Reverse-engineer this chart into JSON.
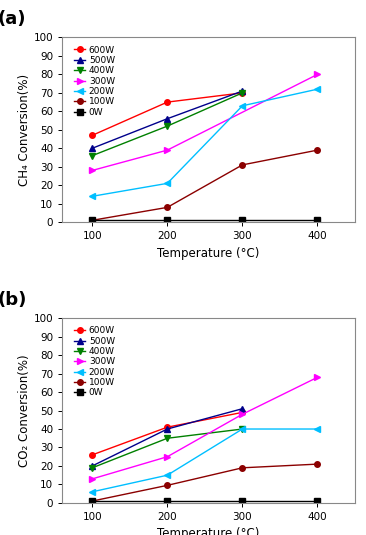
{
  "temperatures": [
    100,
    200,
    300,
    400
  ],
  "panel_a": {
    "title": "(a)",
    "ylabel": "CH₄ Conversion(%)",
    "xlabel": "Temperature (°C)",
    "ylim": [
      0,
      100
    ],
    "series": [
      {
        "label": "600W",
        "color": "#FF0000",
        "marker": "o",
        "values": [
          47,
          65,
          70,
          null
        ]
      },
      {
        "label": "500W",
        "color": "#00008B",
        "marker": "^",
        "values": [
          40,
          56,
          71,
          null
        ]
      },
      {
        "label": "400W",
        "color": "#008000",
        "marker": "v",
        "values": [
          36,
          52,
          70,
          null
        ]
      },
      {
        "label": "300W",
        "color": "#FF00FF",
        "marker": ">",
        "values": [
          28,
          39,
          null,
          80
        ]
      },
      {
        "label": "200W",
        "color": "#00BFFF",
        "marker": "<",
        "values": [
          14,
          21,
          63,
          72
        ]
      },
      {
        "label": "100W",
        "color": "#8B0000",
        "marker": "o",
        "values": [
          1,
          8,
          31,
          39
        ]
      },
      {
        "label": "0W",
        "color": "#000000",
        "marker": "s",
        "values": [
          1,
          1,
          1,
          1
        ]
      }
    ]
  },
  "panel_b": {
    "title": "(b)",
    "ylabel": "CO₂ Conversion(%)",
    "xlabel": "Temperature (°C)",
    "ylim": [
      0,
      100
    ],
    "series": [
      {
        "label": "600W",
        "color": "#FF0000",
        "marker": "o",
        "values": [
          26,
          41,
          49,
          null
        ]
      },
      {
        "label": "500W",
        "color": "#00008B",
        "marker": "^",
        "values": [
          20,
          40,
          51,
          null
        ]
      },
      {
        "label": "400W",
        "color": "#008000",
        "marker": "v",
        "values": [
          19,
          35,
          40,
          null
        ]
      },
      {
        "label": "300W",
        "color": "#FF00FF",
        "marker": ">",
        "values": [
          13,
          25,
          48,
          68
        ]
      },
      {
        "label": "200W",
        "color": "#00BFFF",
        "marker": "<",
        "values": [
          6,
          15,
          40,
          40
        ]
      },
      {
        "label": "100W",
        "color": "#8B0000",
        "marker": "o",
        "values": [
          1,
          9.5,
          19,
          21
        ]
      },
      {
        "label": "0W",
        "color": "#000000",
        "marker": "s",
        "values": [
          1,
          1,
          1,
          1
        ]
      }
    ]
  },
  "legend_fontsize": 6.5,
  "tick_fontsize": 7.5,
  "label_fontsize": 8.5,
  "panel_label_fontsize": 13,
  "marker_size": 4,
  "linewidth": 1.0
}
